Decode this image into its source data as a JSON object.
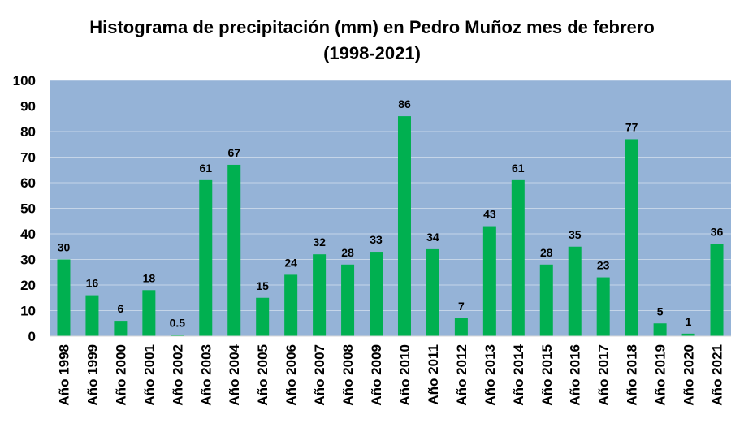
{
  "chart_data": {
    "type": "bar",
    "title_line1": "Histograma de precipitación (mm) en Pedro Muñoz mes de febrero",
    "title_line2": "(1998-2021)",
    "categories": [
      "Año 1998",
      "Año 1999",
      "Año 2000",
      "Año 2001",
      "Año 2002",
      "Año 2003",
      "Año 2004",
      "Año 2005",
      "Año 2006",
      "Año 2007",
      "Año 2008",
      "Año 2009",
      "Año 2010",
      "Año 2011",
      "Año 2012",
      "Año 2013",
      "Año 2014",
      "Año 2015",
      "Año 2016",
      "Año 2017",
      "Año 2018",
      "Año 2019",
      "Año 2020",
      "Año 2021"
    ],
    "values": [
      30,
      16,
      6,
      18,
      0.5,
      61,
      67,
      15,
      24,
      32,
      28,
      33,
      86,
      34,
      7,
      43,
      61,
      28,
      35,
      23,
      77,
      5,
      1,
      36
    ],
    "data_labels": [
      "30",
      "16",
      "6",
      "18",
      "0.5",
      "61",
      "67",
      "15",
      "24",
      "32",
      "28",
      "33",
      "86",
      "34",
      "7",
      "43",
      "61",
      "28",
      "35",
      "23",
      "77",
      "5",
      "1",
      "36"
    ],
    "ylim": [
      0,
      100
    ],
    "yticks": [
      "0",
      "10",
      "20",
      "30",
      "40",
      "50",
      "60",
      "70",
      "80",
      "90",
      "100"
    ],
    "xlabel": "",
    "ylabel": "",
    "grid": true,
    "legend": "none",
    "colors": {
      "bar": "#00b050",
      "plot_background": "#95b3d7",
      "gridline": "#c5d5e8"
    }
  }
}
